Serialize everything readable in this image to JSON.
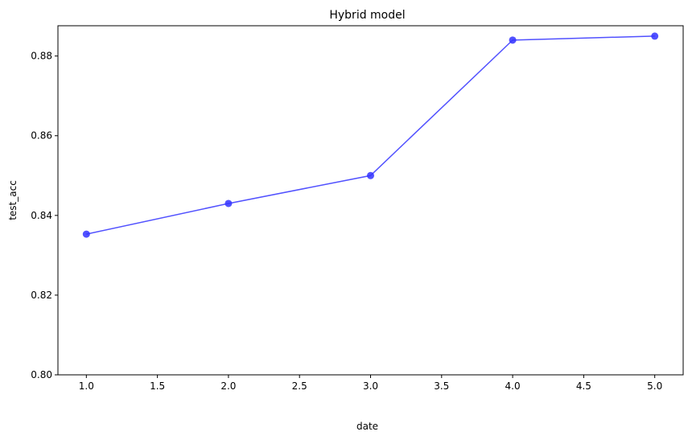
{
  "chart_data": {
    "type": "line",
    "title": "Hybrid model",
    "xlabel": "date",
    "ylabel": "test_acc",
    "x": [
      1.0,
      2.0,
      3.0,
      4.0,
      5.0
    ],
    "series": [
      {
        "values": [
          0.8353,
          0.843,
          0.85,
          0.884,
          0.885
        ],
        "color": "#3333ff",
        "marker": "circle"
      }
    ],
    "xlim": [
      0.8,
      5.2
    ],
    "ylim": [
      0.8,
      0.8876
    ],
    "xticks": [
      1.0,
      1.5,
      2.0,
      2.5,
      3.0,
      3.5,
      4.0,
      4.5,
      5.0
    ],
    "xtick_labels": [
      "1.0",
      "1.5",
      "2.0",
      "2.5",
      "3.0",
      "3.5",
      "4.0",
      "4.5",
      "5.0"
    ],
    "yticks": [
      0.8,
      0.82,
      0.84,
      0.86,
      0.88
    ],
    "ytick_labels": [
      "0.80",
      "0.82",
      "0.84",
      "0.86",
      "0.88"
    ],
    "grid": false,
    "legend": "none"
  }
}
